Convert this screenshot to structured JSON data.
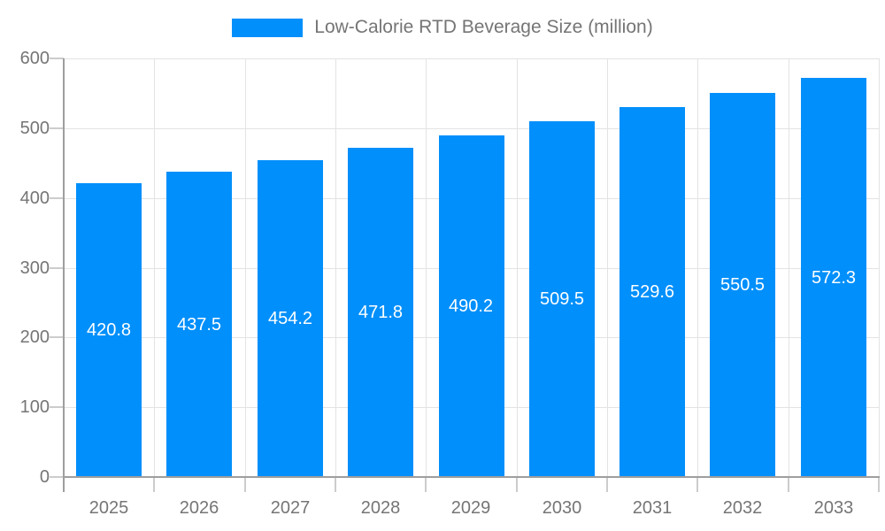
{
  "legend": {
    "label": "Low-Calorie RTD Beverage Size (million)"
  },
  "chart_data": {
    "type": "bar",
    "title": "Low-Calorie RTD Beverage Size (million)",
    "series_name": "Low-Calorie RTD Beverage Size (million)",
    "categories": [
      "2025",
      "2026",
      "2027",
      "2028",
      "2029",
      "2030",
      "2031",
      "2032",
      "2033"
    ],
    "values": [
      420.8,
      437.5,
      454.2,
      471.8,
      490.2,
      509.5,
      529.6,
      550.5,
      572.3
    ],
    "value_labels": [
      "420.8",
      "437.5",
      "454.2",
      "471.8",
      "490.2",
      "509.5",
      "529.6",
      "550.5",
      "572.3"
    ],
    "xlabel": "",
    "ylabel": "",
    "ylim": [
      0,
      600
    ],
    "yticks": [
      0,
      100,
      200,
      300,
      400,
      500,
      600
    ],
    "grid": true,
    "legend_position": "top-center",
    "colors": {
      "bar": "#008FFB",
      "grid": "#E3E3E3",
      "axis": "#9E9E9E",
      "tick": "#CCCCCC",
      "text": "#757575",
      "value_label": "#FFFFFF",
      "background": "#FFFFFF"
    }
  }
}
